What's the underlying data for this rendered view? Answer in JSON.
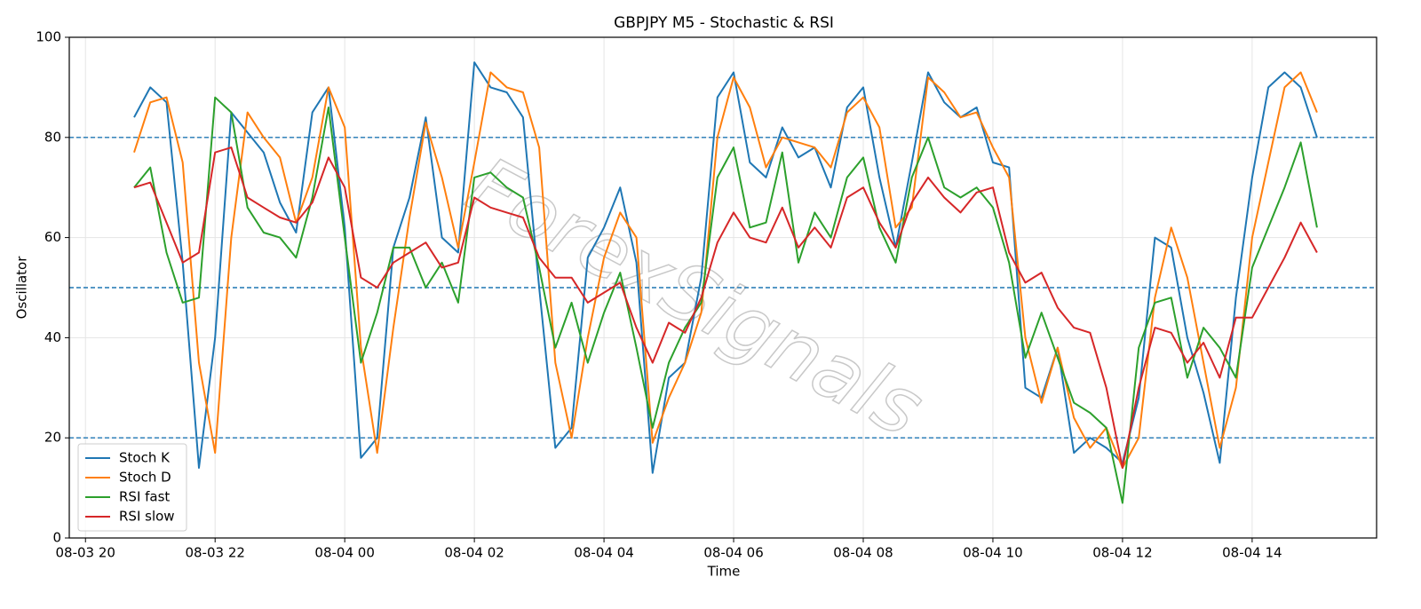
{
  "chart_data": {
    "type": "line",
    "title": "GBPJPY M5 - Stochastic & RSI",
    "x_label": "Time",
    "y_label": "Oscillator",
    "watermark": "ForexSignals",
    "x": [
      0.75,
      1,
      1.25,
      1.5,
      1.75,
      2,
      2.25,
      2.5,
      2.75,
      3,
      3.25,
      3.5,
      3.75,
      4,
      4.25,
      4.5,
      4.75,
      5,
      5.25,
      5.5,
      5.75,
      6,
      6.25,
      6.5,
      6.75,
      7,
      7.25,
      7.5,
      7.75,
      8,
      8.25,
      8.5,
      8.75,
      9,
      9.25,
      9.5,
      9.75,
      10,
      10.25,
      10.5,
      10.75,
      11,
      11.25,
      11.5,
      11.75,
      12,
      12.25,
      12.5,
      12.75,
      13,
      13.25,
      13.5,
      13.75,
      14,
      14.25,
      14.5,
      14.75,
      15,
      15.25,
      15.5,
      15.75,
      16,
      16.25,
      16.5,
      16.75,
      17,
      17.25,
      17.5,
      17.75,
      18,
      18.25,
      18.5,
      18.75,
      19
    ],
    "series": [
      {
        "name": "Stoch K",
        "color": "#1f77b4",
        "values": [
          84,
          90,
          87,
          55,
          14,
          40,
          85,
          81,
          77,
          67,
          61,
          85,
          90,
          62,
          16,
          20,
          58,
          68,
          84,
          60,
          57,
          95,
          90,
          89,
          84,
          50,
          18,
          22,
          56,
          62,
          70,
          55,
          13,
          32,
          35,
          52,
          88,
          93,
          75,
          72,
          82,
          76,
          78,
          70,
          86,
          90,
          72,
          58,
          75,
          93,
          87,
          84,
          86,
          75,
          74,
          30,
          28,
          38,
          17,
          20,
          18,
          15,
          28,
          60,
          58,
          40,
          29,
          15,
          48,
          72,
          90,
          93,
          90,
          80
        ]
      },
      {
        "name": "Stoch D",
        "color": "#ff7f0e",
        "values": [
          77,
          87,
          88,
          75,
          35,
          17,
          60,
          85,
          80,
          76,
          63,
          72,
          90,
          82,
          38,
          17,
          42,
          64,
          83,
          72,
          58,
          75,
          93,
          90,
          89,
          78,
          35,
          20,
          40,
          56,
          65,
          60,
          19,
          28,
          35,
          45,
          80,
          92,
          86,
          74,
          80,
          79,
          78,
          74,
          85,
          88,
          82,
          62,
          66,
          92,
          89,
          84,
          85,
          78,
          72,
          40,
          27,
          38,
          24,
          18,
          22,
          14,
          20,
          48,
          62,
          52,
          35,
          18,
          30,
          60,
          75,
          90,
          93,
          85
        ]
      },
      {
        "name": "RSI fast",
        "color": "#2ca02c",
        "values": [
          70,
          74,
          57,
          47,
          48,
          88,
          85,
          66,
          61,
          60,
          56,
          68,
          86,
          60,
          35,
          45,
          58,
          58,
          50,
          55,
          47,
          72,
          73,
          70,
          68,
          54,
          38,
          47,
          35,
          45,
          53,
          38,
          22,
          35,
          42,
          47,
          72,
          78,
          62,
          63,
          77,
          55,
          65,
          60,
          72,
          76,
          62,
          55,
          72,
          80,
          70,
          68,
          70,
          66,
          55,
          36,
          45,
          36,
          27,
          25,
          22,
          7,
          38,
          47,
          48,
          32,
          42,
          38,
          32,
          54,
          62,
          70,
          79,
          62
        ]
      },
      {
        "name": "RSI slow",
        "color": "#d62728",
        "values": [
          70,
          71,
          63,
          55,
          57,
          77,
          78,
          68,
          66,
          64,
          63,
          67,
          76,
          70,
          52,
          50,
          55,
          57,
          59,
          54,
          55,
          68,
          66,
          65,
          64,
          56,
          52,
          52,
          47,
          49,
          51,
          42,
          35,
          43,
          41,
          48,
          59,
          65,
          60,
          59,
          66,
          58,
          62,
          58,
          68,
          70,
          63,
          58,
          67,
          72,
          68,
          65,
          69,
          70,
          57,
          51,
          53,
          46,
          42,
          41,
          30,
          14,
          30,
          42,
          41,
          35,
          39,
          32,
          44,
          44,
          50,
          56,
          63,
          57
        ]
      }
    ],
    "reference_lines": [
      20,
      50,
      80
    ],
    "reference_color": "#1f77b4",
    "xlim": [
      -0.25,
      19.92
    ],
    "xticks": [
      {
        "value": 0,
        "label": "08-03 20"
      },
      {
        "value": 2,
        "label": "08-03 22"
      },
      {
        "value": 4,
        "label": "08-04 00"
      },
      {
        "value": 6,
        "label": "08-04 02"
      },
      {
        "value": 8,
        "label": "08-04 04"
      },
      {
        "value": 10,
        "label": "08-04 06"
      },
      {
        "value": 12,
        "label": "08-04 08"
      },
      {
        "value": 14,
        "label": "08-04 10"
      },
      {
        "value": 16,
        "label": "08-04 12"
      },
      {
        "value": 18,
        "label": "08-04 14"
      }
    ],
    "ylim": [
      0,
      100
    ],
    "yticks": [
      0,
      20,
      40,
      60,
      80,
      100
    ],
    "grid": true,
    "legend": "lower left"
  }
}
